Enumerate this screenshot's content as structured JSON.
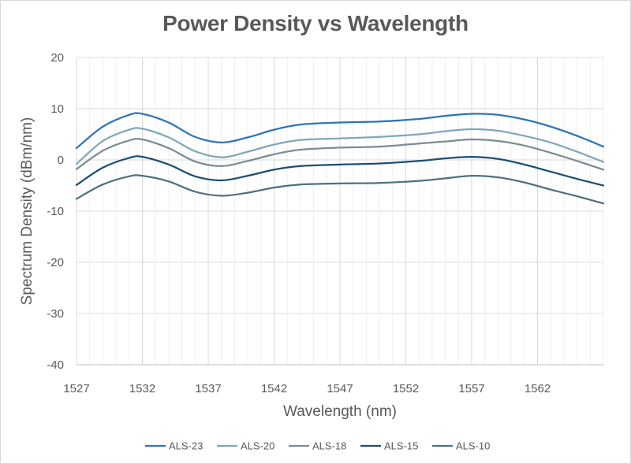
{
  "chart_data": {
    "type": "line",
    "title": "Power Density vs Wavelength",
    "xlabel": "Wavelength (nm)",
    "ylabel": "Spectrum Density (dBm/nm)",
    "xlim": [
      1527,
      1567
    ],
    "ylim": [
      -40,
      20
    ],
    "xticks": [
      1527,
      1532,
      1537,
      1542,
      1547,
      1552,
      1557,
      1562
    ],
    "yticks": [
      20,
      10,
      0,
      -10,
      -20,
      -30,
      -40
    ],
    "grid": true,
    "legend_position": "bottom",
    "x": [
      1527,
      1529,
      1531,
      1532,
      1534,
      1536,
      1538,
      1540,
      1542,
      1544,
      1547,
      1550,
      1553,
      1555,
      1557,
      1559,
      1561,
      1563,
      1565,
      1567
    ],
    "series": [
      {
        "name": "ALS-23",
        "color": "#2e75b6",
        "values": [
          2.3,
          6.5,
          8.8,
          9.0,
          7.3,
          4.5,
          3.4,
          4.4,
          5.9,
          6.9,
          7.3,
          7.5,
          8.0,
          8.6,
          9.0,
          8.8,
          7.9,
          6.5,
          4.7,
          2.6
        ]
      },
      {
        "name": "ALS-20",
        "color": "#7fa7bb",
        "values": [
          -0.8,
          3.7,
          5.9,
          6.1,
          4.4,
          1.7,
          0.5,
          1.6,
          3.0,
          3.9,
          4.2,
          4.5,
          5.0,
          5.6,
          6.0,
          5.7,
          4.7,
          3.4,
          1.6,
          -0.4
        ]
      },
      {
        "name": "ALS-18",
        "color": "#7b8c93",
        "values": [
          -1.8,
          1.8,
          3.8,
          4.0,
          2.3,
          -0.3,
          -1.2,
          -0.2,
          1.1,
          2.0,
          2.4,
          2.6,
          3.2,
          3.6,
          4.0,
          3.7,
          2.8,
          1.4,
          -0.2,
          -1.9
        ]
      },
      {
        "name": "ALS-15",
        "color": "#1d4e72",
        "values": [
          -4.9,
          -1.5,
          0.4,
          0.6,
          -0.9,
          -3.2,
          -4.0,
          -3.1,
          -1.9,
          -1.2,
          -0.9,
          -0.7,
          -0.2,
          0.3,
          0.6,
          0.2,
          -0.9,
          -2.3,
          -3.7,
          -5.0
        ]
      },
      {
        "name": "ALS-10",
        "color": "#4e7180",
        "values": [
          -7.6,
          -4.8,
          -3.2,
          -3.1,
          -4.2,
          -6.2,
          -7.0,
          -6.4,
          -5.4,
          -4.8,
          -4.6,
          -4.5,
          -4.1,
          -3.6,
          -3.1,
          -3.4,
          -4.4,
          -5.8,
          -7.1,
          -8.5
        ]
      }
    ]
  }
}
